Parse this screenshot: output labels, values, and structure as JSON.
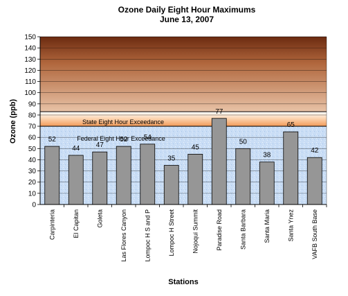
{
  "chart_data": {
    "type": "bar",
    "title": "Ozone Daily  Eight Hour Maximums",
    "subtitle": "June 13, 2007",
    "xlabel": "Stations",
    "ylabel": "Ozone (ppb)",
    "ylim": [
      0,
      150
    ],
    "yticks": [
      0,
      10,
      20,
      30,
      40,
      50,
      60,
      70,
      80,
      90,
      100,
      110,
      120,
      130,
      140,
      150
    ],
    "grid": true,
    "categories": [
      "Carpinteria",
      "El Capitan",
      "Goleta",
      "Las Flores Canyon",
      "Lompoc H S and P",
      "Lompoc H Street",
      "Nojoqui Summit",
      "Paradise Road",
      "Santa Barbara",
      "Santa Maria",
      "Santa Ynez",
      "VAFB South Base"
    ],
    "values": [
      52,
      44,
      47,
      52,
      54,
      35,
      45,
      77,
      50,
      38,
      65,
      42
    ],
    "bar_color": "#969696",
    "thresholds": [
      {
        "label": "Federal Eight Hour Exceedance",
        "value": 83,
        "band": [
          83,
          150
        ],
        "colors": [
          "#6b2a10",
          "#e8c2a6"
        ]
      },
      {
        "label": "State Eight Hour Exceedance",
        "value": 70,
        "band": [
          70,
          83
        ],
        "colors": [
          "#ffffff",
          "#f4a063"
        ]
      }
    ],
    "below_threshold_fill": "#c8dcf4"
  }
}
